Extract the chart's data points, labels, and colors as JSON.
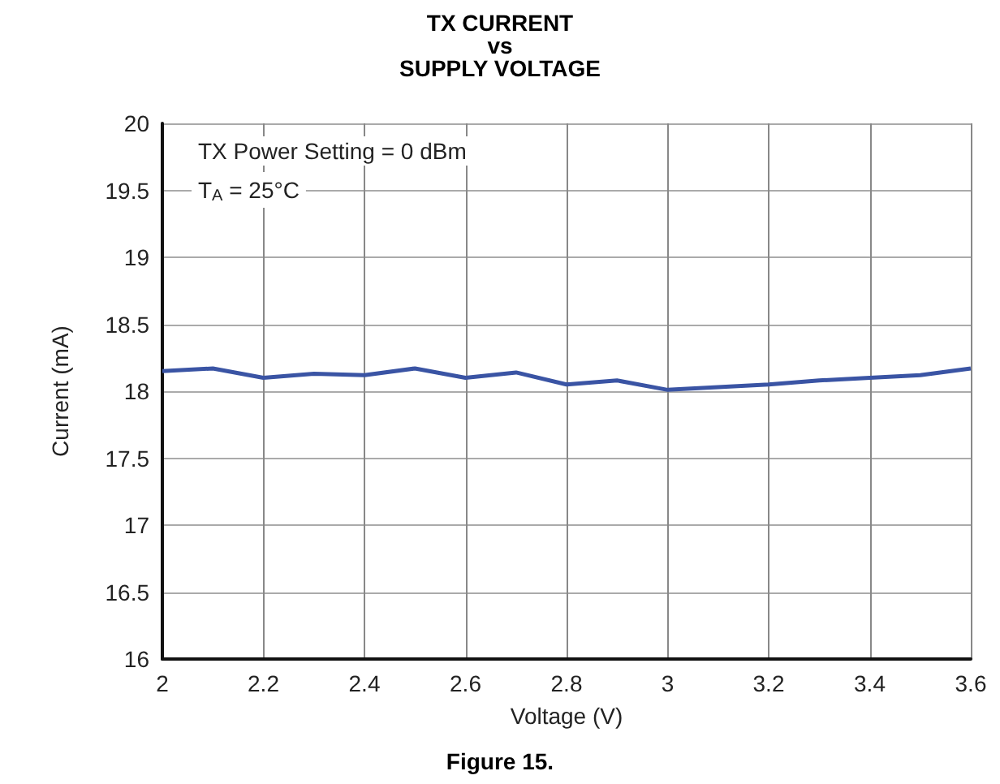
{
  "chart_data": {
    "type": "line",
    "title": "TX CURRENT\nvs\nSUPPLY VOLTAGE",
    "xlabel": "Voltage (V)",
    "ylabel": "Current (mA)",
    "annotations": [
      "TX Power Setting = 0 dBm",
      "T$_{A}$ = 25°C",
      "Figure 15."
    ],
    "x": [
      2,
      2.1,
      2.2,
      2.3,
      2.4,
      2.5,
      2.6,
      2.7,
      2.8,
      2.9,
      3,
      3.1,
      3.2,
      3.3,
      3.4,
      3.5,
      3.6
    ],
    "series": [
      {
        "color": "#3a54a4",
        "values": [
          18.15,
          18.17,
          18.1,
          18.13,
          18.12,
          18.17,
          18.1,
          18.14,
          18.05,
          18.08,
          18.01,
          18.03,
          18.05,
          18.08,
          18.1,
          18.12,
          18.17
        ]
      }
    ],
    "xlim": [
      2,
      3.6
    ],
    "xticks": [
      2,
      2.2,
      2.4,
      2.6,
      2.8,
      3,
      3.2,
      3.4,
      3.6
    ],
    "ylim": [
      16,
      20
    ],
    "yticks": [
      16,
      16.5,
      17,
      17.5,
      18,
      18.5,
      19,
      19.5,
      20
    ],
    "grid": true,
    "marker": "none",
    "line_style": "solid"
  }
}
